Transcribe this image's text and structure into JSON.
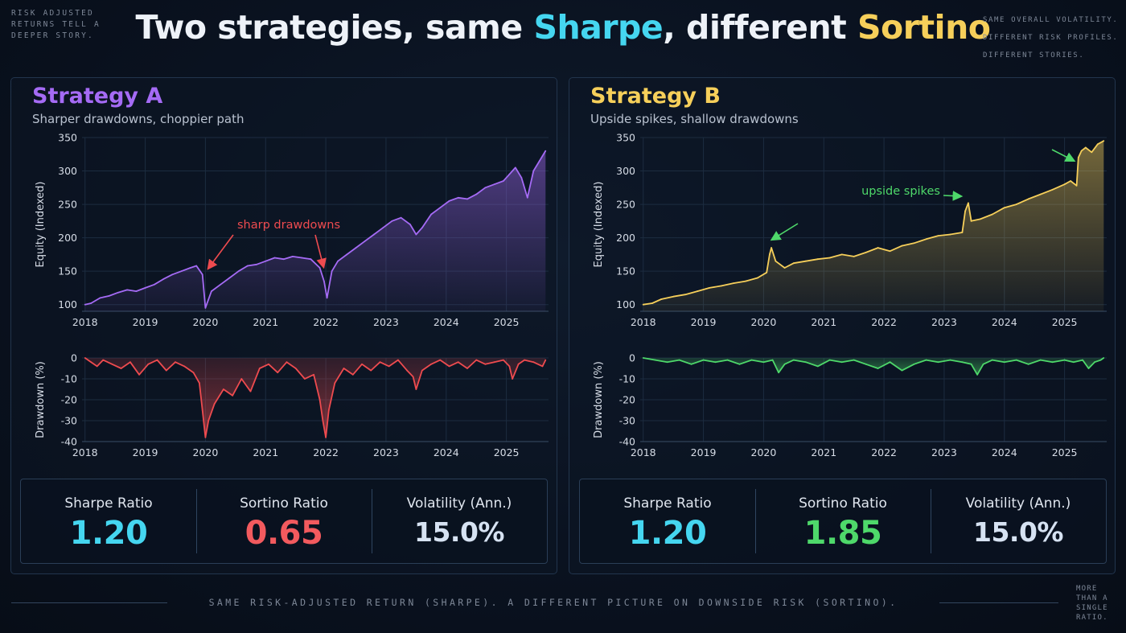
{
  "page": {
    "title_parts": [
      {
        "text": "Two strategies, same ",
        "color": "#eef2f8"
      },
      {
        "text": "Sharpe",
        "color": "#45d6f0"
      },
      {
        "text": ", different ",
        "color": "#eef2f8"
      },
      {
        "text": "Sortino",
        "color": "#f6cf5a"
      }
    ],
    "note_top_left": "RISK ADJUSTED RETURNS TELL A DEEPER STORY.",
    "note_top_right": "SAME OVERALL VOLATILITY. DIFFERENT RISK PROFILES. DIFFERENT STORIES.",
    "note_bottom_right": "MORE THAN A SINGLE RATIO.",
    "footer": "SAME RISK-ADJUSTED RETURN (SHARPE). A DIFFERENT PICTURE ON DOWNSIDE RISK (SORTINO)."
  },
  "colors": {
    "strategy_a": "#a56bf5",
    "strategy_b": "#f6cf5a",
    "drawdown_a": "#ee4b4f",
    "drawdown_b": "#4ed86a",
    "annotation_a": "#ee4b4f",
    "annotation_b": "#4ed86a",
    "sharpe": "#45d6f0",
    "sortino_bad": "#f25a5e",
    "sortino_good": "#4ed86a",
    "volatility": "#d6e2f2",
    "grid": "#1c2c40"
  },
  "panels": [
    {
      "id": "a",
      "title": "Strategy A",
      "subtitle": "Sharper drawdowns, choppier path",
      "metrics": [
        {
          "label": "Sharpe Ratio",
          "value": "1.20",
          "color_key": "sharpe"
        },
        {
          "label": "Sortino Ratio",
          "value": "0.65",
          "color_key": "sortino_bad"
        },
        {
          "label": "Volatility (Ann.)",
          "value": "15.0%",
          "color_key": "volatility"
        }
      ]
    },
    {
      "id": "b",
      "title": "Strategy B",
      "subtitle": "Upside spikes, shallow drawdowns",
      "metrics": [
        {
          "label": "Sharpe Ratio",
          "value": "1.20",
          "color_key": "sharpe"
        },
        {
          "label": "Sortino Ratio",
          "value": "1.85",
          "color_key": "sortino_good"
        },
        {
          "label": "Volatility (Ann.)",
          "value": "15.0%",
          "color_key": "volatility"
        }
      ]
    }
  ],
  "chart_data": [
    {
      "type": "area",
      "panel": "a",
      "role": "equity",
      "ylabel": "Equity (Indexed)",
      "ylim": [
        90,
        350
      ],
      "yticks": [
        100,
        150,
        200,
        250,
        300,
        350
      ],
      "xlim": [
        2017.95,
        2025.7
      ],
      "xticks": [
        "2018",
        "2019",
        "2020",
        "2021",
        "2022",
        "2023",
        "2024",
        "2025"
      ],
      "grid": true,
      "series": [
        {
          "x": [
            2018.0,
            2018.1,
            2018.25,
            2018.4,
            2018.55,
            2018.7,
            2018.85,
            2019.0,
            2019.15,
            2019.3,
            2019.45,
            2019.6,
            2019.75,
            2019.85,
            2019.95,
            2020.0,
            2020.1,
            2020.25,
            2020.4,
            2020.55,
            2020.7,
            2020.85,
            2021.0,
            2021.15,
            2021.3,
            2021.45,
            2021.6,
            2021.75,
            2021.9,
            2021.97,
            2022.02,
            2022.1,
            2022.2,
            2022.35,
            2022.5,
            2022.65,
            2022.8,
            2022.95,
            2023.1,
            2023.25,
            2023.4,
            2023.5,
            2023.6,
            2023.75,
            2023.9,
            2024.05,
            2024.2,
            2024.35,
            2024.5,
            2024.65,
            2024.8,
            2024.95,
            2025.05,
            2025.15,
            2025.25,
            2025.35,
            2025.45,
            2025.55,
            2025.65
          ],
          "y": [
            100,
            102,
            110,
            113,
            118,
            122,
            120,
            125,
            130,
            138,
            145,
            150,
            155,
            158,
            145,
            95,
            120,
            130,
            140,
            150,
            158,
            160,
            165,
            170,
            168,
            172,
            170,
            168,
            155,
            135,
            110,
            150,
            165,
            175,
            185,
            195,
            205,
            215,
            225,
            230,
            220,
            205,
            215,
            235,
            245,
            255,
            260,
            258,
            265,
            275,
            280,
            285,
            295,
            305,
            290,
            260,
            300,
            315,
            330
          ]
        }
      ],
      "annotations": [
        {
          "text": "sharp drawdowns",
          "points_to_x": [
            2020.0,
            2022.0
          ]
        }
      ]
    },
    {
      "type": "area",
      "panel": "a",
      "role": "drawdown",
      "ylabel": "Drawdown (%)",
      "ylim": [
        -40,
        0
      ],
      "yticks": [
        0,
        -10,
        -20,
        -30,
        -40
      ],
      "xlim": [
        2017.95,
        2025.7
      ],
      "xticks": [
        "2018",
        "2019",
        "2020",
        "2021",
        "2022",
        "2023",
        "2024",
        "2025"
      ],
      "grid": true,
      "series": [
        {
          "x": [
            2018.0,
            2018.1,
            2018.2,
            2018.3,
            2018.45,
            2018.6,
            2018.75,
            2018.9,
            2019.05,
            2019.2,
            2019.35,
            2019.5,
            2019.65,
            2019.8,
            2019.9,
            2019.95,
            2020.0,
            2020.05,
            2020.15,
            2020.3,
            2020.45,
            2020.6,
            2020.75,
            2020.9,
            2021.05,
            2021.2,
            2021.35,
            2021.5,
            2021.65,
            2021.8,
            2021.9,
            2021.95,
            2022.0,
            2022.05,
            2022.15,
            2022.3,
            2022.45,
            2022.6,
            2022.75,
            2022.9,
            2023.05,
            2023.2,
            2023.35,
            2023.45,
            2023.5,
            2023.6,
            2023.75,
            2023.9,
            2024.05,
            2024.2,
            2024.35,
            2024.5,
            2024.65,
            2024.8,
            2024.95,
            2025.05,
            2025.1,
            2025.2,
            2025.3,
            2025.45,
            2025.6,
            2025.65
          ],
          "y": [
            0,
            -2,
            -4,
            -1,
            -3,
            -5,
            -2,
            -8,
            -3,
            -1,
            -6,
            -2,
            -4,
            -7,
            -12,
            -25,
            -38,
            -30,
            -22,
            -15,
            -18,
            -10,
            -16,
            -5,
            -3,
            -7,
            -2,
            -5,
            -10,
            -8,
            -20,
            -30,
            -38,
            -25,
            -12,
            -5,
            -8,
            -3,
            -6,
            -2,
            -4,
            -1,
            -6,
            -9,
            -15,
            -6,
            -3,
            -1,
            -4,
            -2,
            -5,
            -1,
            -3,
            -2,
            -1,
            -4,
            -10,
            -3,
            -1,
            -2,
            -4,
            -1
          ]
        }
      ]
    },
    {
      "type": "area",
      "panel": "b",
      "role": "equity",
      "ylabel": "Equity (Indexed)",
      "ylim": [
        90,
        350
      ],
      "yticks": [
        100,
        150,
        200,
        250,
        300,
        350
      ],
      "xlim": [
        2017.95,
        2025.7
      ],
      "xticks": [
        "2018",
        "2019",
        "2020",
        "2021",
        "2022",
        "2023",
        "2024",
        "2025"
      ],
      "grid": true,
      "series": [
        {
          "x": [
            2018.0,
            2018.15,
            2018.3,
            2018.5,
            2018.7,
            2018.9,
            2019.1,
            2019.3,
            2019.5,
            2019.7,
            2019.9,
            2020.05,
            2020.1,
            2020.13,
            2020.2,
            2020.35,
            2020.5,
            2020.7,
            2020.9,
            2021.1,
            2021.3,
            2021.5,
            2021.7,
            2021.9,
            2022.1,
            2022.3,
            2022.5,
            2022.7,
            2022.9,
            2023.1,
            2023.3,
            2023.35,
            2023.4,
            2023.45,
            2023.6,
            2023.8,
            2024.0,
            2024.2,
            2024.4,
            2024.6,
            2024.8,
            2025.0,
            2025.1,
            2025.2,
            2025.23,
            2025.28,
            2025.35,
            2025.45,
            2025.55,
            2025.65
          ],
          "y": [
            100,
            102,
            108,
            112,
            115,
            120,
            125,
            128,
            132,
            135,
            140,
            148,
            175,
            185,
            165,
            155,
            162,
            165,
            168,
            170,
            175,
            172,
            178,
            185,
            180,
            188,
            192,
            198,
            203,
            205,
            208,
            240,
            252,
            225,
            228,
            235,
            245,
            250,
            258,
            265,
            272,
            280,
            285,
            278,
            320,
            330,
            335,
            328,
            340,
            345
          ]
        }
      ],
      "annotations": [
        {
          "text": "upside spikes",
          "points_to_x": [
            2020.2,
            2023.35,
            2025.2
          ]
        }
      ]
    },
    {
      "type": "area",
      "panel": "b",
      "role": "drawdown",
      "ylabel": "Drawdown (%)",
      "ylim": [
        -40,
        0
      ],
      "yticks": [
        0,
        -10,
        -20,
        -30,
        -40
      ],
      "xlim": [
        2017.95,
        2025.7
      ],
      "xticks": [
        "2018",
        "2019",
        "2020",
        "2021",
        "2022",
        "2023",
        "2024",
        "2025"
      ],
      "grid": true,
      "series": [
        {
          "x": [
            2018.0,
            2018.2,
            2018.4,
            2018.6,
            2018.8,
            2019.0,
            2019.2,
            2019.4,
            2019.6,
            2019.8,
            2020.0,
            2020.15,
            2020.25,
            2020.35,
            2020.5,
            2020.7,
            2020.9,
            2021.1,
            2021.3,
            2021.5,
            2021.7,
            2021.9,
            2022.1,
            2022.3,
            2022.5,
            2022.7,
            2022.9,
            2023.1,
            2023.3,
            2023.45,
            2023.55,
            2023.65,
            2023.8,
            2024.0,
            2024.2,
            2024.4,
            2024.6,
            2024.8,
            2025.0,
            2025.15,
            2025.3,
            2025.4,
            2025.5,
            2025.6,
            2025.65
          ],
          "y": [
            0,
            -1,
            -2,
            -1,
            -3,
            -1,
            -2,
            -1,
            -3,
            -1,
            -2,
            -1,
            -7,
            -3,
            -1,
            -2,
            -4,
            -1,
            -2,
            -1,
            -3,
            -5,
            -2,
            -6,
            -3,
            -1,
            -2,
            -1,
            -2,
            -3,
            -8,
            -3,
            -1,
            -2,
            -1,
            -3,
            -1,
            -2,
            -1,
            -2,
            -1,
            -5,
            -2,
            -1,
            0
          ]
        }
      ]
    }
  ]
}
